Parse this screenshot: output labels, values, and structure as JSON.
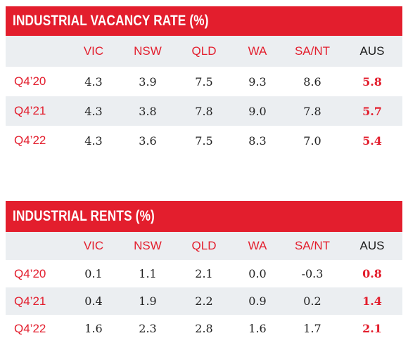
{
  "colors": {
    "accent_red": "#e31e2d",
    "shade_gray": "#ebeef1",
    "text_dark": "#222222"
  },
  "tables": [
    {
      "title": "INDUSTRIAL VACANCY RATE (%)",
      "columns": [
        "",
        "VIC",
        "NSW",
        "QLD",
        "WA",
        "SA/NT",
        "AUS"
      ],
      "rows": [
        {
          "period": "Q4’20",
          "values": [
            "4.3",
            "3.9",
            "7.5",
            "9.3",
            "8.6",
            "5.8"
          ]
        },
        {
          "period": "Q4’21",
          "values": [
            "4.3",
            "3.8",
            "7.8",
            "9.0",
            "7.8",
            "5.7"
          ]
        },
        {
          "period": "Q4’22",
          "values": [
            "4.3",
            "3.6",
            "7.5",
            "8.3",
            "7.0",
            "5.4"
          ]
        }
      ]
    },
    {
      "title": "INDUSTRIAL RENTS (%)",
      "columns": [
        "",
        "VIC",
        "NSW",
        "QLD",
        "WA",
        "SA/NT",
        "AUS"
      ],
      "rows": [
        {
          "period": "Q4’20",
          "values": [
            "0.1",
            "1.1",
            "2.1",
            "0.0",
            "-0.3",
            "0.8"
          ]
        },
        {
          "period": "Q4’21",
          "values": [
            "0.4",
            "1.9",
            "2.2",
            "0.9",
            "0.2",
            "1.4"
          ]
        },
        {
          "period": "Q4’22",
          "values": [
            "1.6",
            "2.3",
            "2.8",
            "1.6",
            "1.7",
            "2.1"
          ]
        }
      ]
    }
  ]
}
